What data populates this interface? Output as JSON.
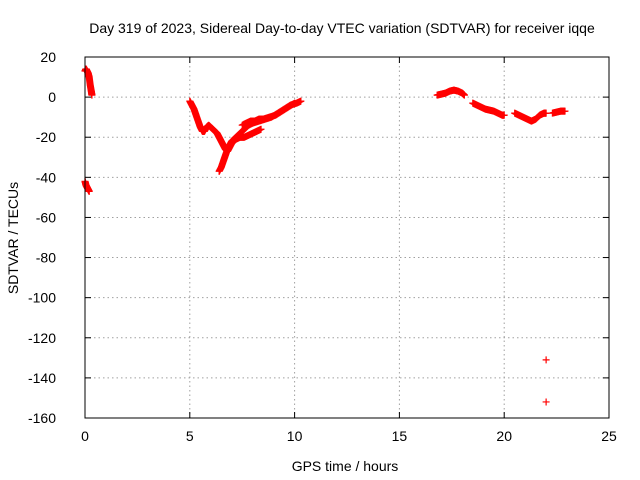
{
  "chart_data": {
    "type": "scatter",
    "title": "Day 319 of 2023, Sidereal Day-to-day VTEC variation (SDTVAR) for receiver iqqe",
    "xlabel": "GPS time / hours",
    "ylabel": "SDTVAR / TECUs",
    "xlim": [
      0,
      25
    ],
    "ylim": [
      -160,
      20
    ],
    "xticks": [
      0,
      5,
      10,
      15,
      20,
      25
    ],
    "yticks": [
      20,
      0,
      -20,
      -40,
      -60,
      -80,
      -100,
      -120,
      -140,
      -160
    ],
    "grid": true,
    "marker": "+",
    "series": [
      {
        "name": "SDTVAR",
        "color": "#ff0000",
        "segments": [
          {
            "x": [
              0.0,
              0.05,
              0.1,
              0.15,
              0.2,
              0.25,
              0.3,
              0.33
            ],
            "y": [
              13,
              14,
              13,
              12,
              10,
              6,
              3,
              1
            ]
          },
          {
            "x": [
              0.0,
              0.05,
              0.1,
              0.15,
              0.2
            ],
            "y": [
              -42,
              -44,
              -45,
              -46,
              -47
            ]
          },
          {
            "x": [
              5.0,
              5.1,
              5.2,
              5.3,
              5.4,
              5.5,
              5.6,
              5.7,
              5.8,
              5.9,
              6.0,
              6.1,
              6.2,
              6.3,
              6.4,
              6.5,
              6.6,
              6.7,
              6.8,
              6.9,
              7.0,
              7.2,
              7.4,
              7.6,
              7.8,
              8.0,
              8.2,
              8.4
            ],
            "y": [
              -2,
              -4,
              -6,
              -9,
              -12,
              -15,
              -17,
              -17,
              -15,
              -14,
              -15,
              -16,
              -17,
              -18,
              -20,
              -22,
              -24,
              -26,
              -27,
              -25,
              -23,
              -21,
              -20,
              -20,
              -19,
              -18,
              -17,
              -16
            ]
          },
          {
            "x": [
              6.4,
              6.5,
              6.6,
              6.7,
              6.8,
              6.9,
              7.0,
              7.2,
              7.4,
              7.6,
              7.8,
              8.0,
              8.3,
              8.6,
              8.9,
              9.2,
              9.5,
              9.8,
              10.1,
              10.3
            ],
            "y": [
              -37,
              -35,
              -32,
              -29,
              -26,
              -24,
              -22,
              -20,
              -18,
              -16,
              -14,
              -13,
              -12,
              -11,
              -10,
              -8,
              -6,
              -4,
              -3,
              -2
            ]
          },
          {
            "x": [
              7.5,
              7.7,
              7.9,
              8.1,
              8.3,
              8.5,
              8.8,
              9.1,
              9.4,
              9.7,
              10.0
            ],
            "y": [
              -14,
              -13,
              -12,
              -12,
              -11,
              -11,
              -10,
              -9,
              -7,
              -5,
              -3
            ]
          },
          {
            "x": [
              16.8,
              17.0,
              17.2,
              17.4,
              17.6,
              17.8,
              18.0,
              18.1
            ],
            "y": [
              1,
              1.5,
              2,
              3,
              3.5,
              3,
              2,
              1
            ]
          },
          {
            "x": [
              18.5,
              18.7,
              18.9,
              19.1,
              19.3,
              19.5,
              19.7,
              19.9,
              20.0
            ],
            "y": [
              -3,
              -4,
              -5,
              -6,
              -6.5,
              -7,
              -8,
              -9,
              -9
            ]
          },
          {
            "x": [
              20.5,
              20.7,
              20.9,
              21.1,
              21.3,
              21.5,
              21.7,
              21.9,
              22.0
            ],
            "y": [
              -8,
              -9,
              -10,
              -11,
              -12,
              -11,
              -9,
              -8,
              -8
            ]
          },
          {
            "x": [
              22.3,
              22.5,
              22.7,
              22.9
            ],
            "y": [
              -8,
              -7.5,
              -7,
              -7
            ]
          },
          {
            "x": [
              22.0
            ],
            "y": [
              -131
            ]
          },
          {
            "x": [
              22.0
            ],
            "y": [
              -152
            ]
          }
        ]
      }
    ]
  }
}
